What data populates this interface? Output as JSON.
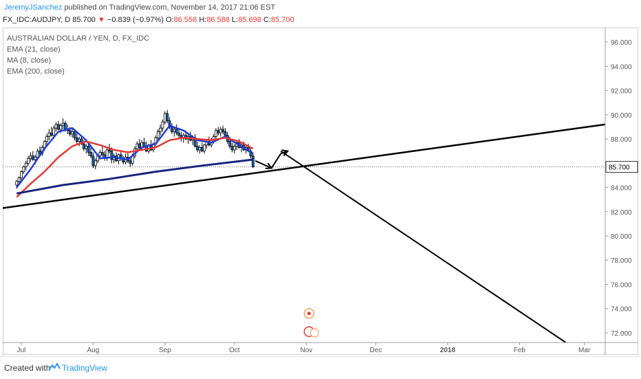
{
  "header": {
    "author": "JeremyJSanchez",
    "published": "published on TradingView.com, November 14, 2017 21:06 EST"
  },
  "quote": {
    "symbol": "FX_IDC:AUDJPY, D",
    "last": "85.700",
    "change": "−0.839 (−0.97%)",
    "open_label": "O:",
    "open": "86.558",
    "high_label": "H:",
    "high": "86.588",
    "low_label": "L:",
    "low": "85.698",
    "close_label": "C:",
    "close": "85.700"
  },
  "legend": [
    "AUSTRALIAN DOLLAR / YEN, D, FX_IDC",
    "EMA (21, close)",
    "MA (8, close)",
    "EMA (200, close)"
  ],
  "footer": {
    "created": "Created with",
    "brand": "TradingView"
  },
  "colors": {
    "up_candle": "#ffffff",
    "down_candle": "#1565c0",
    "ma8": "#1e3dd8",
    "ema21": "#e53935",
    "ema200": "#1a237e",
    "drawing": "#000000",
    "price_label_bg": "#ffffff",
    "accent": "#2196f3"
  },
  "chart_data": {
    "type": "line",
    "y_axis": {
      "ticks": [
        "96.000",
        "94.000",
        "92.000",
        "90.000",
        "88.000",
        "86.000",
        "84.000",
        "82.000",
        "80.000",
        "78.000",
        "76.000",
        "74.000",
        "72.000"
      ],
      "tick_values": [
        96,
        94,
        92,
        90,
        88,
        86,
        84,
        82,
        80,
        78,
        76,
        74,
        72
      ],
      "ylim": [
        71.2,
        97.2
      ],
      "current_price": 85.7,
      "current_label": "85.700"
    },
    "x_axis": {
      "ticks": [
        "Jul",
        "Aug",
        "Sep",
        "Oct",
        "Nov",
        "Dec",
        "2018",
        "Feb",
        "Mar"
      ],
      "tick_days": [
        2,
        33,
        64,
        94,
        125,
        155,
        186,
        217,
        245
      ],
      "xlim_days": [
        -6,
        254
      ]
    },
    "candles": {
      "start_day": 0,
      "ohlc": [
        [
          84.2,
          84.6,
          83.9,
          84.5
        ],
        [
          84.5,
          84.9,
          84.3,
          84.8
        ],
        [
          84.8,
          85.4,
          84.6,
          85.3
        ],
        [
          85.3,
          85.8,
          85.1,
          85.7
        ],
        [
          85.7,
          86.2,
          85.4,
          86.0
        ],
        [
          86.0,
          86.6,
          85.8,
          86.4
        ],
        [
          86.4,
          86.9,
          86.1,
          86.6
        ],
        [
          86.6,
          87.0,
          86.2,
          86.3
        ],
        [
          86.3,
          86.7,
          85.9,
          86.5
        ],
        [
          86.5,
          87.2,
          86.3,
          87.0
        ],
        [
          87.0,
          87.4,
          86.6,
          86.8
        ],
        [
          86.8,
          87.5,
          86.6,
          87.3
        ],
        [
          87.3,
          87.9,
          87.0,
          87.8
        ],
        [
          87.8,
          88.4,
          87.5,
          88.2
        ],
        [
          88.2,
          88.8,
          87.9,
          88.5
        ],
        [
          88.5,
          89.0,
          88.2,
          88.3
        ],
        [
          88.3,
          89.1,
          88.0,
          88.9
        ],
        [
          88.9,
          89.4,
          88.6,
          89.2
        ],
        [
          89.2,
          89.5,
          88.7,
          88.8
        ],
        [
          88.8,
          89.3,
          88.5,
          89.1
        ],
        [
          89.1,
          89.7,
          88.8,
          89.3
        ],
        [
          89.3,
          89.5,
          88.6,
          88.8
        ],
        [
          88.8,
          89.2,
          88.4,
          88.7
        ],
        [
          88.7,
          89.0,
          88.2,
          88.4
        ],
        [
          88.4,
          88.9,
          88.1,
          88.6
        ],
        [
          88.6,
          88.8,
          87.9,
          88.1
        ],
        [
          88.1,
          88.5,
          87.6,
          87.8
        ],
        [
          87.8,
          88.2,
          87.4,
          88.0
        ],
        [
          88.0,
          88.3,
          87.5,
          87.6
        ],
        [
          87.6,
          87.9,
          87.0,
          87.2
        ],
        [
          87.2,
          87.6,
          86.8,
          87.4
        ],
        [
          87.4,
          87.7,
          86.6,
          86.9
        ],
        [
          86.9,
          87.3,
          86.4,
          86.6
        ],
        [
          86.6,
          86.9,
          85.6,
          85.8
        ],
        [
          85.8,
          86.4,
          85.5,
          86.2
        ],
        [
          86.2,
          86.8,
          86.0,
          86.6
        ],
        [
          86.6,
          87.1,
          86.3,
          86.9
        ],
        [
          86.9,
          87.5,
          86.5,
          86.7
        ],
        [
          86.7,
          87.0,
          86.2,
          86.4
        ],
        [
          86.4,
          87.3,
          86.2,
          87.1
        ],
        [
          87.1,
          87.6,
          86.8,
          87.0
        ],
        [
          87.0,
          87.3,
          86.0,
          86.3
        ],
        [
          86.3,
          86.8,
          86.0,
          86.6
        ],
        [
          86.6,
          86.9,
          86.1,
          86.2
        ],
        [
          86.2,
          86.8,
          85.9,
          86.7
        ],
        [
          86.7,
          87.0,
          86.2,
          86.4
        ],
        [
          86.4,
          86.6,
          85.9,
          86.1
        ],
        [
          86.1,
          86.8,
          85.9,
          86.5
        ],
        [
          86.5,
          86.9,
          86.0,
          86.2
        ],
        [
          86.2,
          86.5,
          85.7,
          86.0
        ],
        [
          86.0,
          86.8,
          85.8,
          86.6
        ],
        [
          86.6,
          87.4,
          86.4,
          87.2
        ],
        [
          87.2,
          87.8,
          87.0,
          87.6
        ],
        [
          87.6,
          88.0,
          87.1,
          87.3
        ],
        [
          87.3,
          87.9,
          87.0,
          87.7
        ],
        [
          87.7,
          88.1,
          87.3,
          87.4
        ],
        [
          87.4,
          87.8,
          86.9,
          87.0
        ],
        [
          87.0,
          87.6,
          86.8,
          87.5
        ],
        [
          87.5,
          87.9,
          87.0,
          87.1
        ],
        [
          87.1,
          87.7,
          86.9,
          87.6
        ],
        [
          87.6,
          88.3,
          87.3,
          88.1
        ],
        [
          88.1,
          88.8,
          87.9,
          88.6
        ],
        [
          88.6,
          89.2,
          88.3,
          88.9
        ],
        [
          88.9,
          89.6,
          88.6,
          89.4
        ],
        [
          89.4,
          90.3,
          89.2,
          90.1
        ],
        [
          90.1,
          90.4,
          89.3,
          89.5
        ],
        [
          89.5,
          89.8,
          88.8,
          89.0
        ],
        [
          89.0,
          89.3,
          88.4,
          88.6
        ],
        [
          88.6,
          89.0,
          88.2,
          88.8
        ],
        [
          88.8,
          89.2,
          88.3,
          88.5
        ],
        [
          88.5,
          88.9,
          88.0,
          88.3
        ],
        [
          88.3,
          88.6,
          87.8,
          88.1
        ],
        [
          88.1,
          88.5,
          87.7,
          88.3
        ],
        [
          88.3,
          88.7,
          87.9,
          88.0
        ],
        [
          88.0,
          88.4,
          87.6,
          88.2
        ],
        [
          88.2,
          88.6,
          87.8,
          87.9
        ],
        [
          87.9,
          88.3,
          87.5,
          88.1
        ],
        [
          88.1,
          88.4,
          87.3,
          87.4
        ],
        [
          87.4,
          87.8,
          86.9,
          87.1
        ],
        [
          87.1,
          87.5,
          86.8,
          87.3
        ],
        [
          87.3,
          87.7,
          86.9,
          87.0
        ],
        [
          87.0,
          87.6,
          86.8,
          87.5
        ],
        [
          87.5,
          88.0,
          87.2,
          87.8
        ],
        [
          87.8,
          88.2,
          87.4,
          87.5
        ],
        [
          87.5,
          88.1,
          87.3,
          87.9
        ],
        [
          87.9,
          88.4,
          87.6,
          88.2
        ],
        [
          88.2,
          88.9,
          88.0,
          88.7
        ],
        [
          88.7,
          89.0,
          88.3,
          88.5
        ],
        [
          88.5,
          89.0,
          88.2,
          88.8
        ],
        [
          88.8,
          89.1,
          88.4,
          88.6
        ],
        [
          88.6,
          88.9,
          88.1,
          88.3
        ],
        [
          88.3,
          88.6,
          87.6,
          87.8
        ],
        [
          87.8,
          88.2,
          87.2,
          87.4
        ],
        [
          87.4,
          87.7,
          86.9,
          87.1
        ],
        [
          87.1,
          87.6,
          86.8,
          87.4
        ],
        [
          87.4,
          87.9,
          87.1,
          87.7
        ],
        [
          87.7,
          88.0,
          87.2,
          87.3
        ],
        [
          87.3,
          87.7,
          86.9,
          87.5
        ],
        [
          87.5,
          87.8,
          87.0,
          87.1
        ],
        [
          87.1,
          87.5,
          86.8,
          87.3
        ],
        [
          87.3,
          87.6,
          86.9,
          87.0
        ],
        [
          87.0,
          87.3,
          86.4,
          86.6
        ],
        [
          86.6,
          86.9,
          85.6,
          85.7
        ]
      ]
    },
    "series": [
      {
        "name": "MA (8, close)",
        "color": "#1e3dd8",
        "x": [
          0,
          6,
          12,
          18,
          24,
          30,
          36,
          42,
          48,
          54,
          60,
          66,
          72,
          78,
          84,
          90,
          96,
          102
        ],
        "y": [
          84.0,
          85.5,
          87.2,
          88.6,
          88.9,
          87.9,
          86.4,
          86.5,
          86.3,
          87.3,
          87.6,
          89.1,
          88.7,
          87.9,
          87.7,
          88.2,
          87.5,
          86.8
        ]
      },
      {
        "name": "EMA (21, close)",
        "color": "#e53935",
        "x": [
          0,
          6,
          12,
          18,
          24,
          30,
          36,
          42,
          48,
          54,
          60,
          66,
          72,
          78,
          84,
          90,
          96,
          102
        ],
        "y": [
          83.2,
          84.3,
          85.3,
          86.5,
          87.4,
          87.8,
          87.5,
          87.1,
          86.9,
          87.1,
          87.3,
          87.9,
          88.1,
          88.0,
          87.9,
          88.1,
          87.8,
          87.2
        ]
      },
      {
        "name": "EMA (200, close)",
        "color": "#1a237e",
        "x": [
          0,
          20,
          40,
          60,
          80,
          102
        ],
        "y": [
          83.5,
          84.2,
          84.7,
          85.3,
          85.8,
          86.3
        ]
      }
    ],
    "drawings": {
      "trendline": {
        "x": [
          -6,
          254
        ],
        "y": [
          82.3,
          89.2
        ]
      },
      "path_arrows": [
        [
          103,
          86.2
        ],
        [
          110,
          85.6
        ],
        [
          114,
          86.8
        ],
        [
          117,
          87.0
        ]
      ],
      "drop_line": [
        [
          114,
          87.0
        ],
        [
          237,
          71.2
        ]
      ]
    },
    "title": "AUSTRALIAN DOLLAR / YEN, D, FX_IDC"
  }
}
